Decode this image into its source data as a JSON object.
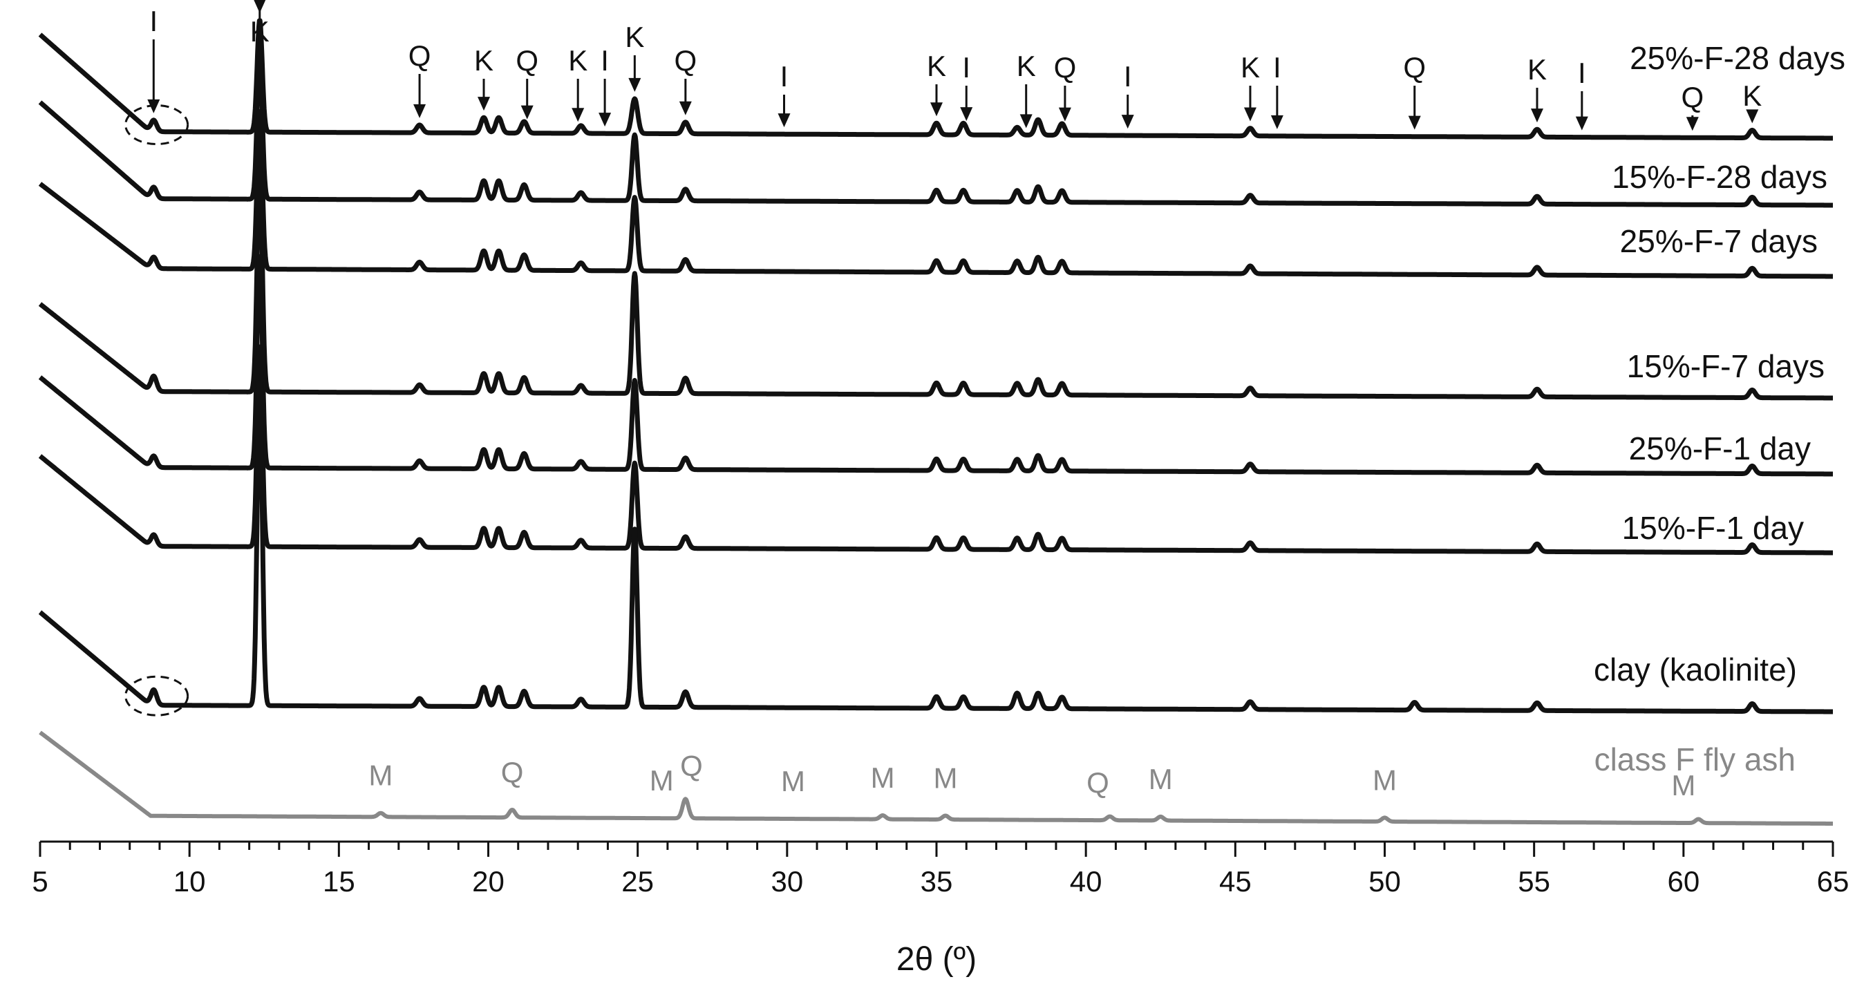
{
  "chart_data": {
    "type": "line",
    "title": "",
    "xlabel": "2θ (º)",
    "ylabel": "",
    "xlim": [
      5,
      65
    ],
    "x_ticks": [
      "5",
      "10",
      "15",
      "20",
      "25",
      "30",
      "35",
      "40",
      "45",
      "50",
      "55",
      "60",
      "65"
    ],
    "y_axis_shown": false,
    "grid": false,
    "series": [
      {
        "name": "25%-F-28 days",
        "color": "#111111",
        "baseline": 0.0,
        "peaks": [
          [
            8.8,
            0.03
          ],
          [
            12.35,
            0.29
          ],
          [
            17.7,
            0.02
          ],
          [
            19.85,
            0.04
          ],
          [
            20.35,
            0.04
          ],
          [
            21.2,
            0.03
          ],
          [
            23.1,
            0.02
          ],
          [
            24.9,
            0.09
          ],
          [
            26.6,
            0.03
          ],
          [
            35.0,
            0.03
          ],
          [
            35.9,
            0.03
          ],
          [
            37.7,
            0.02
          ],
          [
            38.4,
            0.04
          ],
          [
            39.2,
            0.03
          ],
          [
            45.5,
            0.02
          ],
          [
            55.1,
            0.02
          ],
          [
            62.3,
            0.02
          ]
        ]
      },
      {
        "name": "15%-F-28 days",
        "color": "#111111",
        "baseline": 0.0,
        "peaks": [
          [
            8.8,
            0.03
          ],
          [
            12.35,
            0.38
          ],
          [
            17.7,
            0.02
          ],
          [
            19.85,
            0.05
          ],
          [
            20.35,
            0.05
          ],
          [
            21.2,
            0.04
          ],
          [
            23.1,
            0.02
          ],
          [
            24.9,
            0.17
          ],
          [
            26.6,
            0.03
          ],
          [
            35.0,
            0.03
          ],
          [
            35.9,
            0.03
          ],
          [
            37.7,
            0.03
          ],
          [
            38.4,
            0.04
          ],
          [
            39.2,
            0.03
          ],
          [
            45.5,
            0.02
          ],
          [
            55.1,
            0.02
          ],
          [
            62.3,
            0.02
          ]
        ]
      },
      {
        "name": "25%-F-7 days",
        "color": "#111111",
        "baseline": 0.0,
        "peaks": [
          [
            8.8,
            0.03
          ],
          [
            12.35,
            0.41
          ],
          [
            17.7,
            0.02
          ],
          [
            19.85,
            0.05
          ],
          [
            20.35,
            0.05
          ],
          [
            21.2,
            0.04
          ],
          [
            23.1,
            0.02
          ],
          [
            24.9,
            0.19
          ],
          [
            26.6,
            0.03
          ],
          [
            35.0,
            0.03
          ],
          [
            35.9,
            0.03
          ],
          [
            37.7,
            0.03
          ],
          [
            38.4,
            0.04
          ],
          [
            39.2,
            0.03
          ],
          [
            45.5,
            0.02
          ],
          [
            55.1,
            0.02
          ],
          [
            62.3,
            0.02
          ]
        ]
      },
      {
        "name": "15%-F-7 days",
        "color": "#111111",
        "baseline": 0.0,
        "peaks": [
          [
            8.8,
            0.04
          ],
          [
            12.35,
            0.58
          ],
          [
            17.7,
            0.02
          ],
          [
            19.85,
            0.05
          ],
          [
            20.35,
            0.05
          ],
          [
            21.2,
            0.04
          ],
          [
            23.1,
            0.02
          ],
          [
            24.9,
            0.31
          ],
          [
            26.6,
            0.04
          ],
          [
            35.0,
            0.03
          ],
          [
            35.9,
            0.03
          ],
          [
            37.7,
            0.03
          ],
          [
            38.4,
            0.04
          ],
          [
            39.2,
            0.03
          ],
          [
            45.5,
            0.02
          ],
          [
            55.1,
            0.02
          ],
          [
            62.3,
            0.02
          ]
        ]
      },
      {
        "name": "25%-F-1 day",
        "color": "#111111",
        "baseline": 0.0,
        "peaks": [
          [
            8.8,
            0.03
          ],
          [
            12.35,
            0.55
          ],
          [
            17.7,
            0.02
          ],
          [
            19.85,
            0.05
          ],
          [
            20.35,
            0.05
          ],
          [
            21.2,
            0.04
          ],
          [
            23.1,
            0.02
          ],
          [
            24.9,
            0.23
          ],
          [
            26.6,
            0.03
          ],
          [
            35.0,
            0.03
          ],
          [
            35.9,
            0.03
          ],
          [
            37.7,
            0.03
          ],
          [
            38.4,
            0.04
          ],
          [
            39.2,
            0.03
          ],
          [
            45.5,
            0.02
          ],
          [
            55.1,
            0.02
          ],
          [
            62.3,
            0.02
          ]
        ]
      },
      {
        "name": "15%-F-1 day",
        "color": "#111111",
        "baseline": 0.0,
        "peaks": [
          [
            8.8,
            0.03
          ],
          [
            12.35,
            0.52
          ],
          [
            17.7,
            0.02
          ],
          [
            19.85,
            0.05
          ],
          [
            20.35,
            0.05
          ],
          [
            21.2,
            0.04
          ],
          [
            23.1,
            0.02
          ],
          [
            24.9,
            0.22
          ],
          [
            26.6,
            0.03
          ],
          [
            35.0,
            0.03
          ],
          [
            35.9,
            0.03
          ],
          [
            37.7,
            0.03
          ],
          [
            38.4,
            0.04
          ],
          [
            39.2,
            0.03
          ],
          [
            45.5,
            0.02
          ],
          [
            55.1,
            0.02
          ],
          [
            62.3,
            0.02
          ]
        ]
      },
      {
        "name": "clay (kaolinite)",
        "color": "#111111",
        "baseline": 0.0,
        "peaks": [
          [
            8.8,
            0.04
          ],
          [
            12.35,
            0.84
          ],
          [
            17.7,
            0.02
          ],
          [
            19.85,
            0.05
          ],
          [
            20.35,
            0.05
          ],
          [
            21.2,
            0.04
          ],
          [
            23.1,
            0.02
          ],
          [
            24.9,
            0.46
          ],
          [
            26.6,
            0.04
          ],
          [
            35.0,
            0.03
          ],
          [
            35.9,
            0.03
          ],
          [
            37.7,
            0.04
          ],
          [
            38.4,
            0.04
          ],
          [
            39.2,
            0.03
          ],
          [
            45.5,
            0.02
          ],
          [
            51.0,
            0.02
          ],
          [
            55.1,
            0.02
          ],
          [
            62.3,
            0.02
          ]
        ]
      },
      {
        "name": "class F fly ash",
        "color": "#888888",
        "baseline": 0.0,
        "peaks": [
          [
            16.4,
            0.01
          ],
          [
            20.8,
            0.02
          ],
          [
            26.6,
            0.05
          ],
          [
            33.2,
            0.01
          ],
          [
            35.3,
            0.01
          ],
          [
            40.8,
            0.01
          ],
          [
            42.5,
            0.01
          ],
          [
            50.0,
            0.01
          ],
          [
            60.5,
            0.01
          ]
        ]
      }
    ],
    "annotations": [
      {
        "text": "I",
        "x": 8.8,
        "arrow": true,
        "series": "25%-F-28 days"
      },
      {
        "text": "K",
        "x": 12.35,
        "arrow": true,
        "series": "25%-F-28 days"
      },
      {
        "text": "Q",
        "x": 17.7,
        "arrow": true,
        "series": "25%-F-28 days"
      },
      {
        "text": "K",
        "x": 19.85,
        "arrow": true,
        "series": "25%-F-28 days"
      },
      {
        "text": "Q",
        "x": 21.3,
        "arrow": true,
        "series": "25%-F-28 days"
      },
      {
        "text": "K",
        "x": 23.0,
        "arrow": true,
        "series": "25%-F-28 days"
      },
      {
        "text": "I",
        "x": 23.9,
        "arrow": true,
        "series": "25%-F-28 days"
      },
      {
        "text": "K",
        "x": 24.9,
        "arrow": true,
        "series": "25%-F-28 days"
      },
      {
        "text": "Q",
        "x": 26.6,
        "arrow": true,
        "series": "25%-F-28 days"
      },
      {
        "text": "I",
        "x": 29.9,
        "arrow": true,
        "series": "25%-F-28 days"
      },
      {
        "text": "K",
        "x": 35.0,
        "arrow": true,
        "series": "25%-F-28 days"
      },
      {
        "text": "I",
        "x": 36.0,
        "arrow": true,
        "series": "25%-F-28 days"
      },
      {
        "text": "K",
        "x": 38.0,
        "arrow": true,
        "series": "25%-F-28 days"
      },
      {
        "text": "Q",
        "x": 39.3,
        "arrow": true,
        "series": "25%-F-28 days"
      },
      {
        "text": "I",
        "x": 41.4,
        "arrow": true,
        "series": "25%-F-28 days"
      },
      {
        "text": "K",
        "x": 45.5,
        "arrow": true,
        "series": "25%-F-28 days"
      },
      {
        "text": "I",
        "x": 46.4,
        "arrow": true,
        "series": "25%-F-28 days"
      },
      {
        "text": "Q",
        "x": 51.0,
        "arrow": true,
        "series": "25%-F-28 days"
      },
      {
        "text": "K",
        "x": 55.1,
        "arrow": true,
        "series": "25%-F-28 days"
      },
      {
        "text": "I",
        "x": 56.6,
        "arrow": true,
        "series": "25%-F-28 days"
      },
      {
        "text": "Q",
        "x": 60.3,
        "arrow": true,
        "series": "25%-F-28 days"
      },
      {
        "text": "K",
        "x": 62.3,
        "arrow": true,
        "series": "25%-F-28 days"
      },
      {
        "text": "M",
        "x": 16.4,
        "arrow": false,
        "series": "class F fly ash"
      },
      {
        "text": "Q",
        "x": 20.8,
        "arrow": false,
        "series": "class F fly ash"
      },
      {
        "text": "M",
        "x": 25.8,
        "arrow": false,
        "series": "class F fly ash"
      },
      {
        "text": "Q",
        "x": 26.8,
        "arrow": false,
        "series": "class F fly ash"
      },
      {
        "text": "M",
        "x": 30.2,
        "arrow": false,
        "series": "class F fly ash"
      },
      {
        "text": "M",
        "x": 33.2,
        "arrow": false,
        "series": "class F fly ash"
      },
      {
        "text": "M",
        "x": 35.3,
        "arrow": false,
        "series": "class F fly ash"
      },
      {
        "text": "Q",
        "x": 40.4,
        "arrow": false,
        "series": "class F fly ash"
      },
      {
        "text": "M",
        "x": 42.5,
        "arrow": false,
        "series": "class F fly ash"
      },
      {
        "text": "M",
        "x": 50.0,
        "arrow": false,
        "series": "class F fly ash"
      },
      {
        "text": "M",
        "x": 60.0,
        "arrow": false,
        "series": "class F fly ash"
      }
    ],
    "highlight_regions": [
      {
        "shape": "dashed-ellipse",
        "x": 8.9,
        "series": "25%-F-28 days"
      },
      {
        "shape": "dashed-ellipse",
        "x": 8.9,
        "series": "clay (kaolinite)"
      }
    ]
  }
}
